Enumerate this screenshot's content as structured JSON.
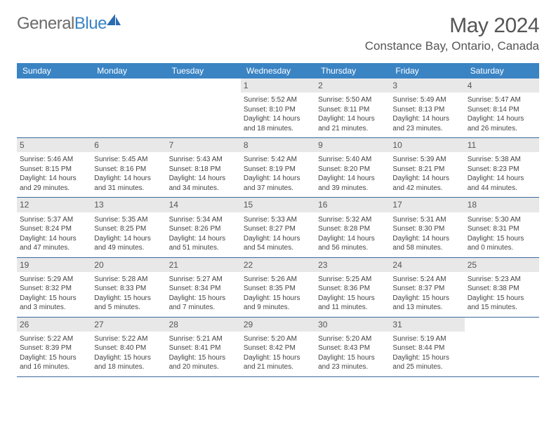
{
  "brand": {
    "part1": "General",
    "part2": "Blue"
  },
  "title": "May 2024",
  "location": "Constance Bay, Ontario, Canada",
  "header_bg": "#3a84c4",
  "dayNames": [
    "Sunday",
    "Monday",
    "Tuesday",
    "Wednesday",
    "Thursday",
    "Friday",
    "Saturday"
  ],
  "weeks": [
    [
      null,
      null,
      null,
      {
        "n": "1",
        "sr": "5:52 AM",
        "ss": "8:10 PM",
        "dh": "14",
        "dm": "18"
      },
      {
        "n": "2",
        "sr": "5:50 AM",
        "ss": "8:11 PM",
        "dh": "14",
        "dm": "21"
      },
      {
        "n": "3",
        "sr": "5:49 AM",
        "ss": "8:13 PM",
        "dh": "14",
        "dm": "23"
      },
      {
        "n": "4",
        "sr": "5:47 AM",
        "ss": "8:14 PM",
        "dh": "14",
        "dm": "26"
      }
    ],
    [
      {
        "n": "5",
        "sr": "5:46 AM",
        "ss": "8:15 PM",
        "dh": "14",
        "dm": "29"
      },
      {
        "n": "6",
        "sr": "5:45 AM",
        "ss": "8:16 PM",
        "dh": "14",
        "dm": "31"
      },
      {
        "n": "7",
        "sr": "5:43 AM",
        "ss": "8:18 PM",
        "dh": "14",
        "dm": "34"
      },
      {
        "n": "8",
        "sr": "5:42 AM",
        "ss": "8:19 PM",
        "dh": "14",
        "dm": "37"
      },
      {
        "n": "9",
        "sr": "5:40 AM",
        "ss": "8:20 PM",
        "dh": "14",
        "dm": "39"
      },
      {
        "n": "10",
        "sr": "5:39 AM",
        "ss": "8:21 PM",
        "dh": "14",
        "dm": "42"
      },
      {
        "n": "11",
        "sr": "5:38 AM",
        "ss": "8:23 PM",
        "dh": "14",
        "dm": "44"
      }
    ],
    [
      {
        "n": "12",
        "sr": "5:37 AM",
        "ss": "8:24 PM",
        "dh": "14",
        "dm": "47"
      },
      {
        "n": "13",
        "sr": "5:35 AM",
        "ss": "8:25 PM",
        "dh": "14",
        "dm": "49"
      },
      {
        "n": "14",
        "sr": "5:34 AM",
        "ss": "8:26 PM",
        "dh": "14",
        "dm": "51"
      },
      {
        "n": "15",
        "sr": "5:33 AM",
        "ss": "8:27 PM",
        "dh": "14",
        "dm": "54"
      },
      {
        "n": "16",
        "sr": "5:32 AM",
        "ss": "8:28 PM",
        "dh": "14",
        "dm": "56"
      },
      {
        "n": "17",
        "sr": "5:31 AM",
        "ss": "8:30 PM",
        "dh": "14",
        "dm": "58"
      },
      {
        "n": "18",
        "sr": "5:30 AM",
        "ss": "8:31 PM",
        "dh": "15",
        "dm": "0"
      }
    ],
    [
      {
        "n": "19",
        "sr": "5:29 AM",
        "ss": "8:32 PM",
        "dh": "15",
        "dm": "3"
      },
      {
        "n": "20",
        "sr": "5:28 AM",
        "ss": "8:33 PM",
        "dh": "15",
        "dm": "5"
      },
      {
        "n": "21",
        "sr": "5:27 AM",
        "ss": "8:34 PM",
        "dh": "15",
        "dm": "7"
      },
      {
        "n": "22",
        "sr": "5:26 AM",
        "ss": "8:35 PM",
        "dh": "15",
        "dm": "9"
      },
      {
        "n": "23",
        "sr": "5:25 AM",
        "ss": "8:36 PM",
        "dh": "15",
        "dm": "11"
      },
      {
        "n": "24",
        "sr": "5:24 AM",
        "ss": "8:37 PM",
        "dh": "15",
        "dm": "13"
      },
      {
        "n": "25",
        "sr": "5:23 AM",
        "ss": "8:38 PM",
        "dh": "15",
        "dm": "15"
      }
    ],
    [
      {
        "n": "26",
        "sr": "5:22 AM",
        "ss": "8:39 PM",
        "dh": "15",
        "dm": "16"
      },
      {
        "n": "27",
        "sr": "5:22 AM",
        "ss": "8:40 PM",
        "dh": "15",
        "dm": "18"
      },
      {
        "n": "28",
        "sr": "5:21 AM",
        "ss": "8:41 PM",
        "dh": "15",
        "dm": "20"
      },
      {
        "n": "29",
        "sr": "5:20 AM",
        "ss": "8:42 PM",
        "dh": "15",
        "dm": "21"
      },
      {
        "n": "30",
        "sr": "5:20 AM",
        "ss": "8:43 PM",
        "dh": "15",
        "dm": "23"
      },
      {
        "n": "31",
        "sr": "5:19 AM",
        "ss": "8:44 PM",
        "dh": "15",
        "dm": "25"
      },
      null
    ]
  ]
}
